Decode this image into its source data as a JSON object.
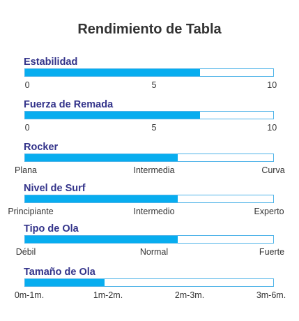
{
  "title": "Rendimiento de Tabla",
  "colors": {
    "bar_fill": "#08adef",
    "bar_border": "#4fb3e8",
    "label": "#33338a",
    "text": "#333333"
  },
  "metrics": [
    {
      "label": "Estabilidad",
      "value": 0.705,
      "ticks": [
        "0",
        "5",
        "10"
      ]
    },
    {
      "label": "Fuerza de Remada",
      "value": 0.705,
      "ticks": [
        "0",
        "5",
        "10"
      ]
    },
    {
      "label": "Rocker",
      "value": 0.615,
      "ticks": [
        "Plana",
        "Intermedia",
        "Curva"
      ]
    },
    {
      "label": "Nivel de Surf",
      "value": 0.615,
      "ticks": [
        "Principiante",
        "Intermedio",
        "Experto"
      ]
    },
    {
      "label": "Tipo de Ola",
      "value": 0.615,
      "ticks": [
        "Débil",
        "Normal",
        "Fuerte"
      ]
    },
    {
      "label": "Tamaño de Ola",
      "value": 0.32,
      "ticks": [
        "0m-1m.",
        "1m-2m.",
        "2m-3m.",
        "3m-6m."
      ]
    }
  ]
}
